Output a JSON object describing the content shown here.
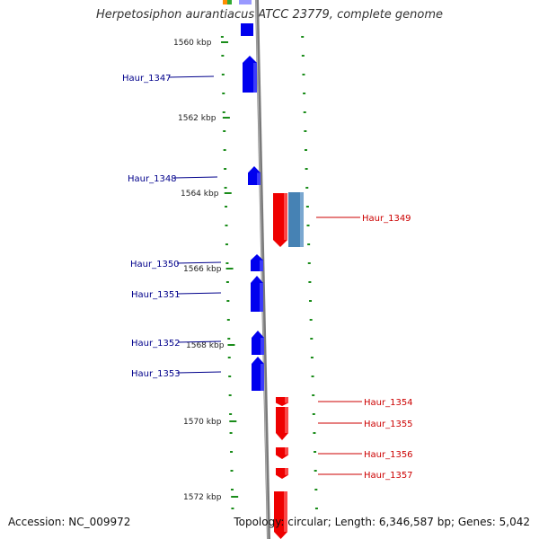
{
  "title": "Herpetosiphon aurantiacus ATCC 23779, complete genome",
  "footer": {
    "accession_label": "Accession:",
    "accession": "NC_009972",
    "topology_label": "Topology:",
    "topology": "circular",
    "length_label": "Length:",
    "length": "6,346,587 bp",
    "genes_label": "Genes:",
    "genes": "5,042"
  },
  "colors": {
    "forward_gene": "#0000ee",
    "reverse_gene": "#ee0000",
    "other_feature": "#4682b4",
    "tick": "#1a8c1a",
    "backbone": "#888888",
    "forward_label": "#00008b",
    "reverse_label": "#cc0000"
  },
  "scale": {
    "unit": "kbp",
    "labels": [
      "1560 kbp",
      "1562 kbp",
      "1564 kbp",
      "1566 kbp",
      "1568 kbp",
      "1570 kbp",
      "1572 kbp"
    ]
  },
  "genes": [
    {
      "name": "Haur_1347",
      "strand": "+"
    },
    {
      "name": "Haur_1348",
      "strand": "+"
    },
    {
      "name": "Haur_1349",
      "strand": "-"
    },
    {
      "name": "Haur_1350",
      "strand": "+"
    },
    {
      "name": "Haur_1351",
      "strand": "+"
    },
    {
      "name": "Haur_1352",
      "strand": "+"
    },
    {
      "name": "Haur_1353",
      "strand": "+"
    },
    {
      "name": "Haur_1354",
      "strand": "-"
    },
    {
      "name": "Haur_1355",
      "strand": "-"
    },
    {
      "name": "Haur_1356",
      "strand": "-"
    },
    {
      "name": "Haur_1357",
      "strand": "-"
    }
  ]
}
